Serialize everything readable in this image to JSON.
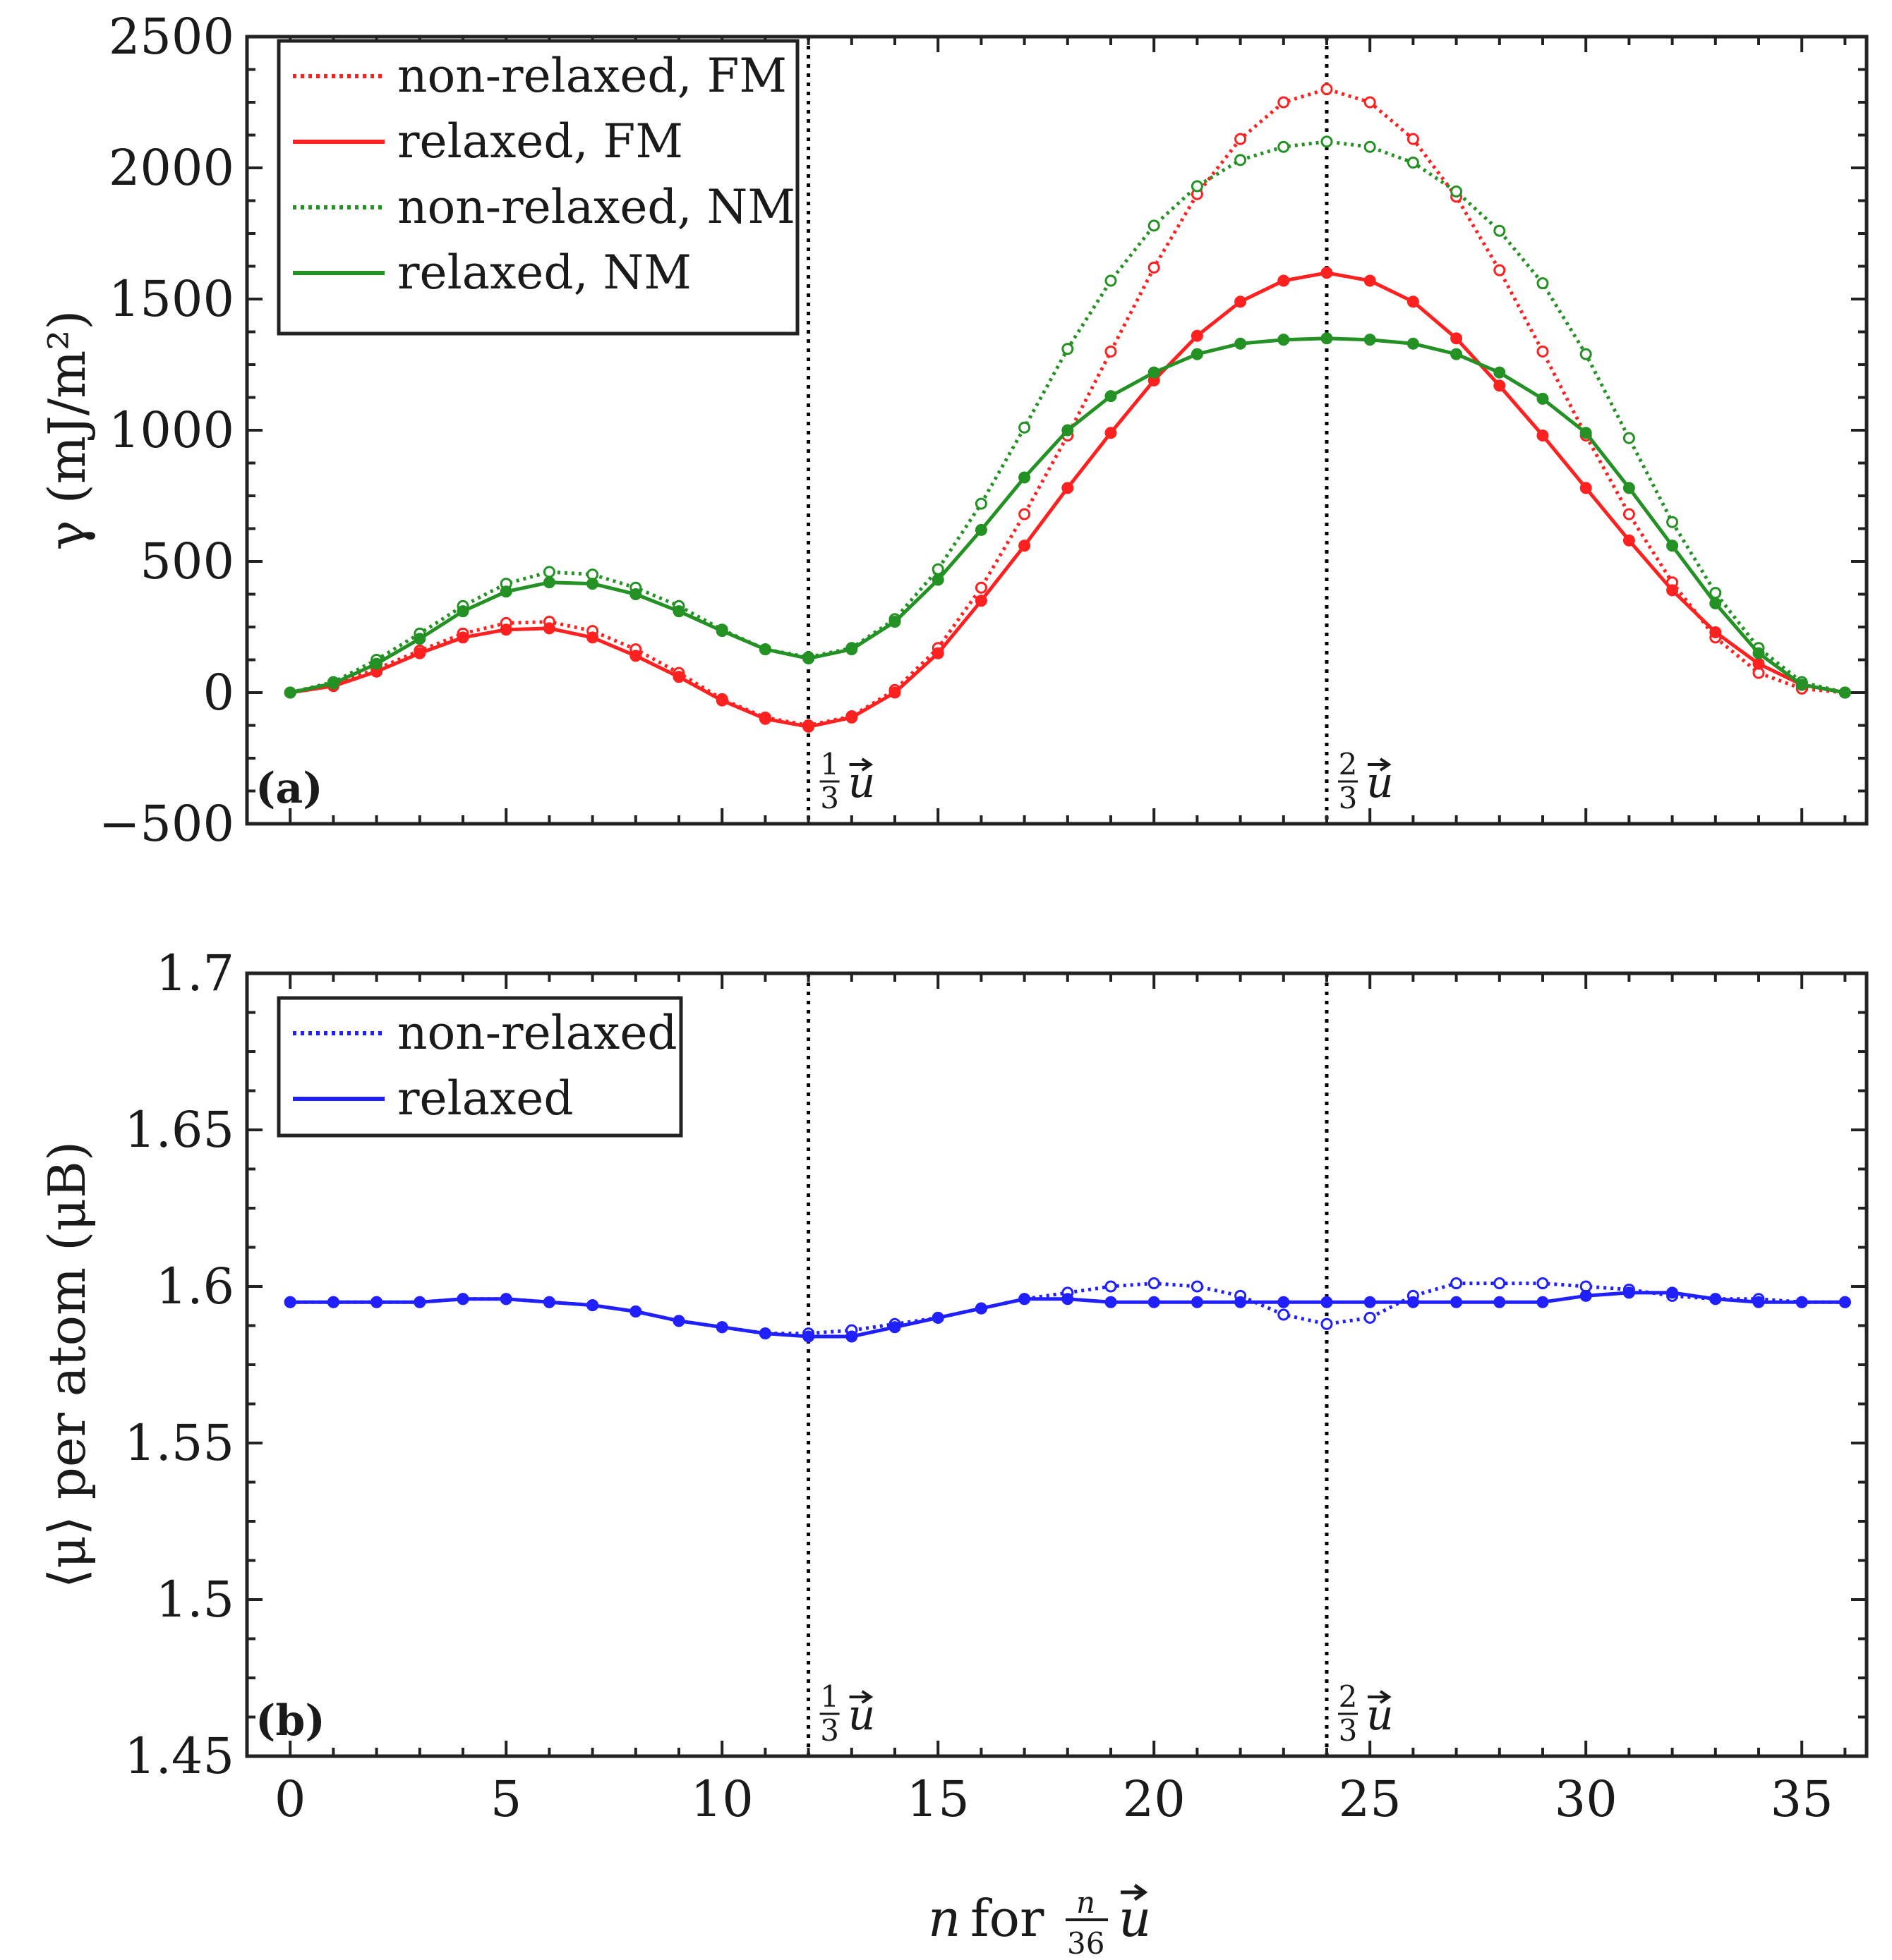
{
  "chart_data": [
    {
      "type": "line",
      "panel": "(a)",
      "xlabel": "n for n/36 u",
      "ylabel": "γ (mJ/m²)",
      "xlim": [
        -1,
        36.5
      ],
      "ylim": [
        -500,
        2500
      ],
      "xticks": [
        0,
        5,
        10,
        15,
        20,
        25,
        30,
        35
      ],
      "xtick_labels": [
        "0",
        "5",
        "10",
        "15",
        "20",
        "25",
        "30",
        "35"
      ],
      "yticks": [
        -500,
        0,
        500,
        1000,
        1500,
        2000,
        2500
      ],
      "ytick_labels": [
        "−500",
        "0",
        "500",
        "1000",
        "1500",
        "2000",
        "2500"
      ],
      "vlines": [
        12,
        24
      ],
      "vline_labels": [
        "1/3 u",
        "2/3 u"
      ],
      "legend_position": "top-left",
      "x": [
        0,
        1,
        2,
        3,
        4,
        5,
        6,
        7,
        8,
        9,
        10,
        11,
        12,
        13,
        14,
        15,
        16,
        17,
        18,
        19,
        20,
        21,
        22,
        23,
        24,
        25,
        26,
        27,
        28,
        29,
        30,
        31,
        32,
        33,
        34,
        35,
        36
      ],
      "series": [
        {
          "name": "non-relaxed, FM",
          "color": "#ff2020",
          "dash": "dotted",
          "marker": "open",
          "values": [
            0,
            30,
            90,
            160,
            225,
            265,
            270,
            235,
            165,
            75,
            -25,
            -95,
            -125,
            -90,
            10,
            170,
            400,
            680,
            980,
            1300,
            1620,
            1900,
            2110,
            2250,
            2300,
            2250,
            2110,
            1890,
            1610,
            1300,
            980,
            680,
            420,
            210,
            75,
            15,
            0
          ]
        },
        {
          "name": "relaxed, FM",
          "color": "#ff2020",
          "dash": "solid",
          "marker": "filled",
          "values": [
            0,
            25,
            80,
            150,
            210,
            240,
            245,
            210,
            140,
            60,
            -30,
            -100,
            -130,
            -95,
            0,
            150,
            350,
            560,
            780,
            990,
            1190,
            1360,
            1490,
            1570,
            1600,
            1570,
            1490,
            1350,
            1170,
            980,
            780,
            580,
            390,
            230,
            110,
            30,
            0
          ]
        },
        {
          "name": "non-relaxed, NM",
          "color": "#239123",
          "dash": "dotted",
          "marker": "open",
          "values": [
            0,
            40,
            125,
            225,
            330,
            415,
            460,
            450,
            400,
            330,
            240,
            165,
            135,
            170,
            280,
            470,
            720,
            1010,
            1310,
            1570,
            1780,
            1930,
            2030,
            2080,
            2100,
            2080,
            2020,
            1910,
            1760,
            1560,
            1290,
            970,
            650,
            380,
            170,
            40,
            0
          ]
        },
        {
          "name": "relaxed, NM",
          "color": "#239123",
          "dash": "solid",
          "marker": "filled",
          "values": [
            0,
            35,
            110,
            205,
            310,
            385,
            420,
            415,
            375,
            310,
            235,
            165,
            130,
            165,
            270,
            430,
            620,
            820,
            1000,
            1130,
            1220,
            1290,
            1330,
            1345,
            1350,
            1345,
            1330,
            1290,
            1220,
            1120,
            990,
            780,
            560,
            340,
            150,
            30,
            0
          ]
        }
      ]
    },
    {
      "type": "line",
      "panel": "(b)",
      "xlabel": "n for n/36 u",
      "ylabel": "⟨μ⟩ per atom (μB)",
      "xlim": [
        -1,
        36.5
      ],
      "ylim": [
        1.45,
        1.7
      ],
      "xticks": [
        0,
        5,
        10,
        15,
        20,
        25,
        30,
        35
      ],
      "xtick_labels": [
        "0",
        "5",
        "10",
        "15",
        "20",
        "25",
        "30",
        "35"
      ],
      "yticks": [
        1.45,
        1.5,
        1.55,
        1.6,
        1.65,
        1.7
      ],
      "ytick_labels": [
        "1.45",
        "1.5",
        "1.55",
        "1.6",
        "1.65",
        "1.7"
      ],
      "vlines": [
        12,
        24
      ],
      "vline_labels": [
        "1/3 u",
        "2/3 u"
      ],
      "legend_position": "top-left",
      "x": [
        0,
        1,
        2,
        3,
        4,
        5,
        6,
        7,
        8,
        9,
        10,
        11,
        12,
        13,
        14,
        15,
        16,
        17,
        18,
        19,
        20,
        21,
        22,
        23,
        24,
        25,
        26,
        27,
        28,
        29,
        30,
        31,
        32,
        33,
        34,
        35,
        36
      ],
      "series": [
        {
          "name": "non-relaxed",
          "color": "#2020ff",
          "dash": "dotted",
          "marker": "open",
          "values": [
            1.595,
            1.595,
            1.595,
            1.595,
            1.596,
            1.596,
            1.595,
            1.594,
            1.592,
            1.589,
            1.587,
            1.585,
            1.585,
            1.586,
            1.588,
            1.59,
            1.593,
            1.596,
            1.598,
            1.6,
            1.601,
            1.6,
            1.597,
            1.591,
            1.588,
            1.59,
            1.597,
            1.601,
            1.601,
            1.601,
            1.6,
            1.599,
            1.597,
            1.596,
            1.596,
            1.595,
            1.595
          ]
        },
        {
          "name": "relaxed",
          "color": "#2020ff",
          "dash": "solid",
          "marker": "filled",
          "values": [
            1.595,
            1.595,
            1.595,
            1.595,
            1.596,
            1.596,
            1.595,
            1.594,
            1.592,
            1.589,
            1.587,
            1.585,
            1.584,
            1.584,
            1.587,
            1.59,
            1.593,
            1.596,
            1.596,
            1.595,
            1.595,
            1.595,
            1.595,
            1.595,
            1.595,
            1.595,
            1.595,
            1.595,
            1.595,
            1.595,
            1.597,
            1.598,
            1.598,
            1.596,
            1.595,
            1.595,
            1.595
          ]
        }
      ]
    }
  ]
}
